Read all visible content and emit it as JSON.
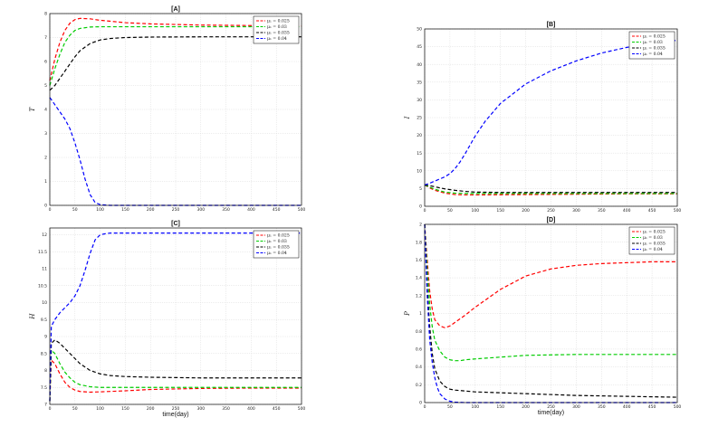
{
  "chart_data": [
    {
      "type": "line",
      "title": "[A]",
      "xlabel": "",
      "ylabel": "T",
      "xlim": [
        0,
        500
      ],
      "ylim": [
        0,
        8
      ],
      "xticks": [
        0,
        50,
        100,
        150,
        200,
        250,
        300,
        350,
        400,
        450,
        500
      ],
      "yticks": [
        0,
        1,
        2,
        3,
        4,
        5,
        6,
        7,
        8
      ],
      "grid": true,
      "legend_position": "top-right",
      "series": [
        {
          "name": "μ₁ = 0.025",
          "color": "#ff0000",
          "x": [
            0,
            10,
            20,
            30,
            40,
            50,
            60,
            80,
            100,
            150,
            200,
            300,
            400,
            500
          ],
          "y": [
            5.2,
            6.1,
            6.8,
            7.3,
            7.6,
            7.75,
            7.8,
            7.78,
            7.72,
            7.62,
            7.57,
            7.52,
            7.5,
            7.48
          ]
        },
        {
          "name": "μ₁ = 0.03",
          "color": "#00cc00",
          "x": [
            0,
            10,
            20,
            30,
            40,
            50,
            60,
            80,
            100,
            150,
            200,
            300,
            400,
            500
          ],
          "y": [
            5.0,
            5.7,
            6.3,
            6.8,
            7.1,
            7.3,
            7.38,
            7.44,
            7.45,
            7.45,
            7.45,
            7.45,
            7.45,
            7.45
          ]
        },
        {
          "name": "μ₁ = 0.035",
          "color": "#000000",
          "x": [
            0,
            10,
            20,
            30,
            40,
            50,
            60,
            80,
            100,
            120,
            150,
            200,
            300,
            400,
            500
          ],
          "y": [
            4.8,
            5.0,
            5.3,
            5.6,
            5.9,
            6.2,
            6.45,
            6.75,
            6.9,
            6.96,
            7.0,
            7.02,
            7.03,
            7.03,
            7.03
          ]
        },
        {
          "name": "μ₁ = 0.04",
          "color": "#0000ff",
          "x": [
            0,
            10,
            20,
            30,
            40,
            50,
            60,
            70,
            80,
            90,
            100,
            120,
            150,
            200,
            300,
            500
          ],
          "y": [
            4.5,
            4.2,
            3.9,
            3.6,
            3.2,
            2.6,
            1.9,
            1.1,
            0.45,
            0.12,
            0.03,
            0.0,
            0.0,
            0.0,
            0.0,
            0.0
          ]
        }
      ]
    },
    {
      "type": "line",
      "title": "[B]",
      "xlabel": "",
      "ylabel": "I",
      "xlim": [
        0,
        500
      ],
      "ylim": [
        0,
        50
      ],
      "xticks": [
        0,
        50,
        100,
        150,
        200,
        250,
        300,
        350,
        400,
        450,
        500
      ],
      "yticks": [
        0,
        5,
        10,
        15,
        20,
        25,
        30,
        35,
        40,
        45,
        50
      ],
      "grid": true,
      "legend_position": "top-right",
      "series": [
        {
          "name": "μ₁ = 0.025",
          "color": "#ff0000",
          "x": [
            0,
            10,
            20,
            40,
            60,
            80,
            100,
            200,
            300,
            400,
            500
          ],
          "y": [
            6.0,
            5.2,
            4.5,
            3.7,
            3.3,
            3.2,
            3.2,
            3.3,
            3.4,
            3.5,
            3.5
          ]
        },
        {
          "name": "μ₁ = 0.03",
          "color": "#00cc00",
          "x": [
            0,
            10,
            20,
            40,
            60,
            80,
            100,
            200,
            300,
            400,
            500
          ],
          "y": [
            6.0,
            5.4,
            4.8,
            4.0,
            3.7,
            3.6,
            3.6,
            3.6,
            3.6,
            3.6,
            3.6
          ]
        },
        {
          "name": "μ₁ = 0.035",
          "color": "#000000",
          "x": [
            0,
            10,
            20,
            40,
            60,
            80,
            100,
            150,
            200,
            300,
            400,
            500
          ],
          "y": [
            6.0,
            5.8,
            5.5,
            4.9,
            4.5,
            4.2,
            4.0,
            3.9,
            3.9,
            3.9,
            3.9,
            3.9
          ]
        },
        {
          "name": "μ₁ = 0.04",
          "color": "#0000ff",
          "x": [
            0,
            10,
            20,
            30,
            40,
            50,
            60,
            70,
            80,
            90,
            100,
            120,
            150,
            200,
            250,
            300,
            350,
            400,
            450,
            500
          ],
          "y": [
            6.0,
            6.5,
            7.1,
            7.7,
            8.3,
            9.2,
            10.6,
            12.5,
            14.8,
            17.3,
            19.8,
            24.0,
            29.0,
            34.5,
            38.2,
            41.0,
            43.2,
            44.8,
            46.0,
            46.8
          ]
        }
      ]
    },
    {
      "type": "line",
      "title": "[C]",
      "xlabel": "time(day)",
      "ylabel": "H",
      "xlim": [
        0,
        500
      ],
      "ylim": [
        7,
        12.2
      ],
      "xticks": [
        0,
        50,
        100,
        150,
        200,
        250,
        300,
        350,
        400,
        450,
        500
      ],
      "yticks": [
        7,
        7.5,
        8,
        8.5,
        9,
        9.5,
        10,
        10.5,
        11,
        11.5,
        12
      ],
      "grid": true,
      "legend_position": "top-right",
      "series": [
        {
          "name": "μ₁ = 0.025",
          "color": "#ff0000",
          "x": [
            0,
            3,
            10,
            20,
            30,
            40,
            50,
            60,
            80,
            100,
            150,
            200,
            300,
            400,
            500
          ],
          "y": [
            7.1,
            8.3,
            8.2,
            7.9,
            7.65,
            7.5,
            7.42,
            7.38,
            7.36,
            7.37,
            7.4,
            7.44,
            7.47,
            7.48,
            7.48
          ]
        },
        {
          "name": "μ₁ = 0.03",
          "color": "#00cc00",
          "x": [
            0,
            3,
            10,
            20,
            30,
            40,
            50,
            60,
            80,
            100,
            150,
            200,
            300,
            400,
            500
          ],
          "y": [
            7.1,
            8.6,
            8.5,
            8.2,
            7.95,
            7.78,
            7.65,
            7.58,
            7.52,
            7.5,
            7.5,
            7.5,
            7.5,
            7.5,
            7.5
          ]
        },
        {
          "name": "μ₁ = 0.035",
          "color": "#000000",
          "x": [
            0,
            3,
            10,
            20,
            30,
            40,
            50,
            60,
            80,
            100,
            120,
            150,
            200,
            300,
            400,
            500
          ],
          "y": [
            7.1,
            8.8,
            8.9,
            8.8,
            8.65,
            8.5,
            8.35,
            8.2,
            8.0,
            7.9,
            7.85,
            7.82,
            7.8,
            7.78,
            7.78,
            7.78
          ]
        },
        {
          "name": "μ₁ = 0.04",
          "color": "#0000ff",
          "x": [
            0,
            3,
            10,
            20,
            30,
            40,
            50,
            60,
            70,
            80,
            90,
            100,
            110,
            120,
            150,
            200,
            300,
            400,
            500
          ],
          "y": [
            7.1,
            9.3,
            9.5,
            9.7,
            9.85,
            10.0,
            10.2,
            10.5,
            10.95,
            11.45,
            11.85,
            12.0,
            12.03,
            12.05,
            12.05,
            12.05,
            12.05,
            12.05,
            12.05
          ]
        }
      ]
    },
    {
      "type": "line",
      "title": "[D]",
      "xlabel": "time(day)",
      "ylabel": "P",
      "xlim": [
        0,
        500
      ],
      "ylim": [
        0,
        2
      ],
      "xticks": [
        0,
        50,
        100,
        150,
        200,
        250,
        300,
        350,
        400,
        450,
        500
      ],
      "yticks": [
        0,
        0.2,
        0.4,
        0.6,
        0.8,
        1,
        1.2,
        1.4,
        1.6,
        1.8,
        2
      ],
      "grid": true,
      "legend_position": "top-right",
      "series": [
        {
          "name": "μ₁ = 0.025",
          "color": "#ff0000",
          "x": [
            0,
            5,
            10,
            15,
            20,
            30,
            40,
            50,
            60,
            80,
            100,
            150,
            200,
            250,
            300,
            350,
            400,
            450,
            500
          ],
          "y": [
            2.0,
            1.6,
            1.25,
            1.05,
            0.93,
            0.86,
            0.84,
            0.86,
            0.9,
            0.98,
            1.07,
            1.27,
            1.42,
            1.5,
            1.54,
            1.56,
            1.57,
            1.58,
            1.58
          ]
        },
        {
          "name": "μ₁ = 0.03",
          "color": "#00cc00",
          "x": [
            0,
            5,
            10,
            15,
            20,
            30,
            40,
            50,
            60,
            70,
            80,
            100,
            150,
            200,
            300,
            400,
            500
          ],
          "y": [
            2.0,
            1.5,
            1.1,
            0.85,
            0.7,
            0.58,
            0.51,
            0.48,
            0.47,
            0.47,
            0.48,
            0.49,
            0.51,
            0.53,
            0.54,
            0.54,
            0.54
          ]
        },
        {
          "name": "μ₁ = 0.035",
          "color": "#000000",
          "x": [
            0,
            5,
            10,
            15,
            20,
            30,
            40,
            50,
            60,
            80,
            100,
            150,
            200,
            300,
            400,
            500
          ],
          "y": [
            2.0,
            1.3,
            0.85,
            0.55,
            0.38,
            0.24,
            0.18,
            0.15,
            0.14,
            0.13,
            0.12,
            0.11,
            0.1,
            0.08,
            0.07,
            0.06
          ]
        },
        {
          "name": "μ₁ = 0.04",
          "color": "#0000ff",
          "x": [
            0,
            5,
            10,
            15,
            20,
            25,
            30,
            40,
            50,
            60,
            80,
            100,
            200,
            500
          ],
          "y": [
            2.0,
            1.2,
            0.7,
            0.45,
            0.28,
            0.17,
            0.1,
            0.04,
            0.015,
            0.005,
            0.0,
            0.0,
            0.0,
            0.0
          ]
        }
      ]
    }
  ]
}
